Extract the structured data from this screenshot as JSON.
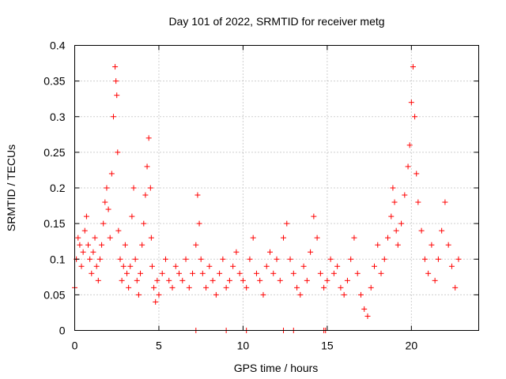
{
  "chart_data": {
    "type": "scatter",
    "title": "Day 101 of 2022, SRMTID for receiver metg",
    "xlabel": "GPS time / hours",
    "ylabel": "SRMTID / TECUs",
    "xlim": [
      0,
      24
    ],
    "ylim": [
      0,
      0.4
    ],
    "xticks": [
      0,
      5,
      10,
      15,
      20
    ],
    "xtick_labels": [
      "0",
      "5",
      "10",
      "15",
      "20"
    ],
    "yticks": [
      0,
      0.05,
      0.1,
      0.15,
      0.2,
      0.25,
      0.3,
      0.35,
      0.4
    ],
    "ytick_labels": [
      "0",
      "0.05",
      "0.1",
      "0.15",
      "0.2",
      "0.25",
      "0.3",
      "0.35",
      "0.4"
    ],
    "grid": true,
    "marker": "+",
    "color": "#ff0000",
    "series": [
      {
        "name": "SRMTID",
        "x": [
          0.0,
          0.1,
          0.2,
          0.3,
          0.4,
          0.5,
          0.6,
          0.7,
          0.8,
          0.9,
          1.0,
          1.1,
          1.2,
          1.3,
          1.4,
          1.5,
          1.6,
          1.7,
          1.8,
          1.9,
          2.0,
          2.1,
          2.2,
          2.3,
          2.4,
          2.45,
          2.5,
          2.55,
          2.6,
          2.7,
          2.8,
          2.9,
          3.0,
          3.1,
          3.2,
          3.3,
          3.4,
          3.5,
          3.6,
          3.7,
          3.8,
          3.9,
          4.0,
          4.1,
          4.2,
          4.3,
          4.4,
          4.5,
          4.55,
          4.6,
          4.7,
          4.8,
          4.9,
          5.0,
          5.2,
          5.4,
          5.6,
          5.8,
          6.0,
          6.2,
          6.4,
          6.6,
          6.8,
          7.0,
          7.2,
          7.3,
          7.4,
          7.5,
          7.6,
          7.8,
          8.0,
          8.2,
          8.4,
          8.6,
          8.8,
          9.0,
          9.2,
          9.4,
          9.6,
          9.8,
          10.0,
          10.2,
          10.4,
          10.6,
          10.8,
          11.0,
          11.2,
          11.4,
          11.6,
          11.8,
          12.0,
          12.2,
          12.4,
          12.6,
          12.8,
          13.0,
          13.2,
          13.4,
          13.6,
          13.8,
          14.0,
          14.2,
          14.4,
          14.6,
          14.8,
          15.0,
          15.2,
          15.4,
          15.6,
          15.8,
          16.0,
          16.2,
          16.4,
          16.6,
          16.8,
          17.0,
          17.2,
          17.4,
          17.6,
          17.8,
          18.0,
          18.2,
          18.4,
          18.6,
          18.8,
          18.9,
          19.0,
          19.1,
          19.2,
          19.4,
          19.6,
          19.8,
          19.9,
          20.0,
          20.1,
          20.2,
          20.3,
          20.4,
          20.6,
          20.8,
          21.0,
          21.2,
          21.4,
          21.6,
          21.8,
          22.0,
          22.2,
          22.4,
          22.6,
          22.8,
          7.2,
          9.0,
          10.2,
          12.4,
          13.0,
          14.8,
          14.9
        ],
        "y": [
          0.06,
          0.1,
          0.13,
          0.12,
          0.09,
          0.11,
          0.14,
          0.16,
          0.12,
          0.1,
          0.08,
          0.11,
          0.13,
          0.09,
          0.07,
          0.1,
          0.12,
          0.15,
          0.18,
          0.2,
          0.17,
          0.13,
          0.22,
          0.3,
          0.37,
          0.35,
          0.33,
          0.25,
          0.14,
          0.1,
          0.07,
          0.09,
          0.12,
          0.08,
          0.06,
          0.09,
          0.16,
          0.2,
          0.1,
          0.07,
          0.05,
          0.08,
          0.12,
          0.15,
          0.19,
          0.23,
          0.27,
          0.2,
          0.13,
          0.09,
          0.06,
          0.04,
          0.07,
          0.05,
          0.08,
          0.1,
          0.07,
          0.06,
          0.09,
          0.08,
          0.07,
          0.1,
          0.06,
          0.08,
          0.12,
          0.19,
          0.15,
          0.1,
          0.08,
          0.06,
          0.09,
          0.07,
          0.05,
          0.08,
          0.1,
          0.06,
          0.07,
          0.09,
          0.11,
          0.08,
          0.07,
          0.06,
          0.1,
          0.13,
          0.08,
          0.07,
          0.05,
          0.09,
          0.11,
          0.08,
          0.1,
          0.07,
          0.13,
          0.15,
          0.1,
          0.08,
          0.06,
          0.05,
          0.09,
          0.07,
          0.11,
          0.16,
          0.13,
          0.08,
          0.06,
          0.07,
          0.1,
          0.08,
          0.09,
          0.06,
          0.05,
          0.07,
          0.1,
          0.13,
          0.08,
          0.05,
          0.03,
          0.02,
          0.06,
          0.09,
          0.12,
          0.08,
          0.1,
          0.13,
          0.16,
          0.2,
          0.18,
          0.14,
          0.12,
          0.15,
          0.19,
          0.23,
          0.26,
          0.32,
          0.37,
          0.3,
          0.22,
          0.18,
          0.14,
          0.1,
          0.08,
          0.12,
          0.07,
          0.1,
          0.14,
          0.18,
          0.12,
          0.09,
          0.06,
          0.1,
          0,
          0,
          0,
          0,
          0,
          0,
          0
        ]
      }
    ]
  }
}
